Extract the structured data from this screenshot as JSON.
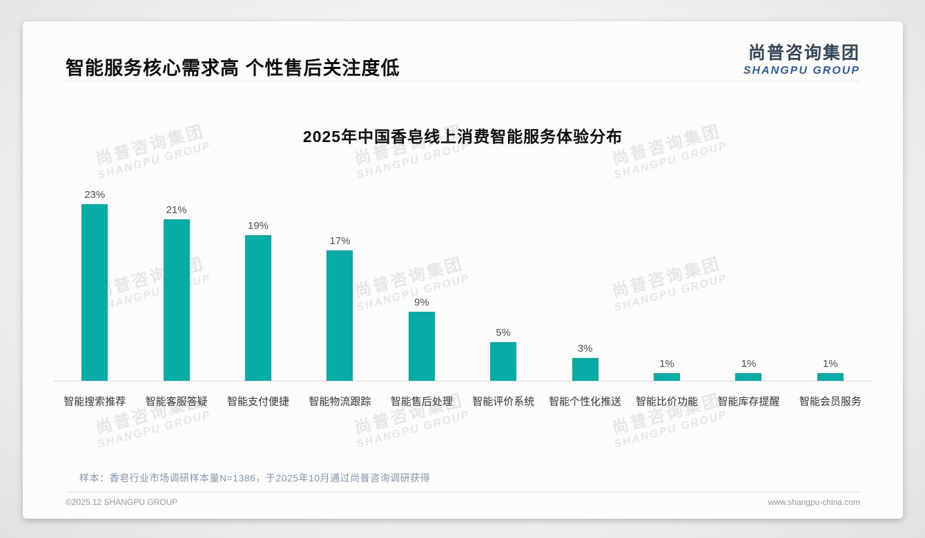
{
  "page": {
    "title": "智能服务核心需求高 个性售后关注度低",
    "logo": {
      "cn": "尚普咨询集团",
      "en": "SHANGPU GROUP"
    },
    "watermark": {
      "line1": "尚普咨询集团",
      "line2": "SHANGPU GROUP"
    },
    "footnote": "样本：香皂行业市场调研样本量N=1386，于2025年10月通过尚普咨询调研获得",
    "copyright": "©2025.12 SHANGPU GROUP",
    "website": "www.shangpu-china.com"
  },
  "colors": {
    "bar": "#06aca5",
    "axis": "#d9d9d9",
    "note": "#8096ad"
  },
  "chart_data": {
    "type": "bar",
    "title": "2025年中国香皂线上消费智能服务体验分布",
    "categories": [
      "智能搜索推荐",
      "智能客服答疑",
      "智能支付便捷",
      "智能物流跟踪",
      "智能售后处理",
      "智能评价系统",
      "智能个性化推送",
      "智能比价功能",
      "智能库存提醒",
      "智能会员服务"
    ],
    "values": [
      23,
      21,
      19,
      17,
      9,
      5,
      3,
      1,
      1,
      1
    ],
    "unit": "%",
    "value_labels": [
      "23%",
      "21%",
      "19%",
      "17%",
      "9%",
      "5%",
      "3%",
      "1%",
      "1%",
      "1%"
    ],
    "xlabel": "",
    "ylabel": "",
    "ylim": [
      0,
      25
    ],
    "grid": false,
    "legend": false,
    "bar_color": "#06aca5"
  }
}
